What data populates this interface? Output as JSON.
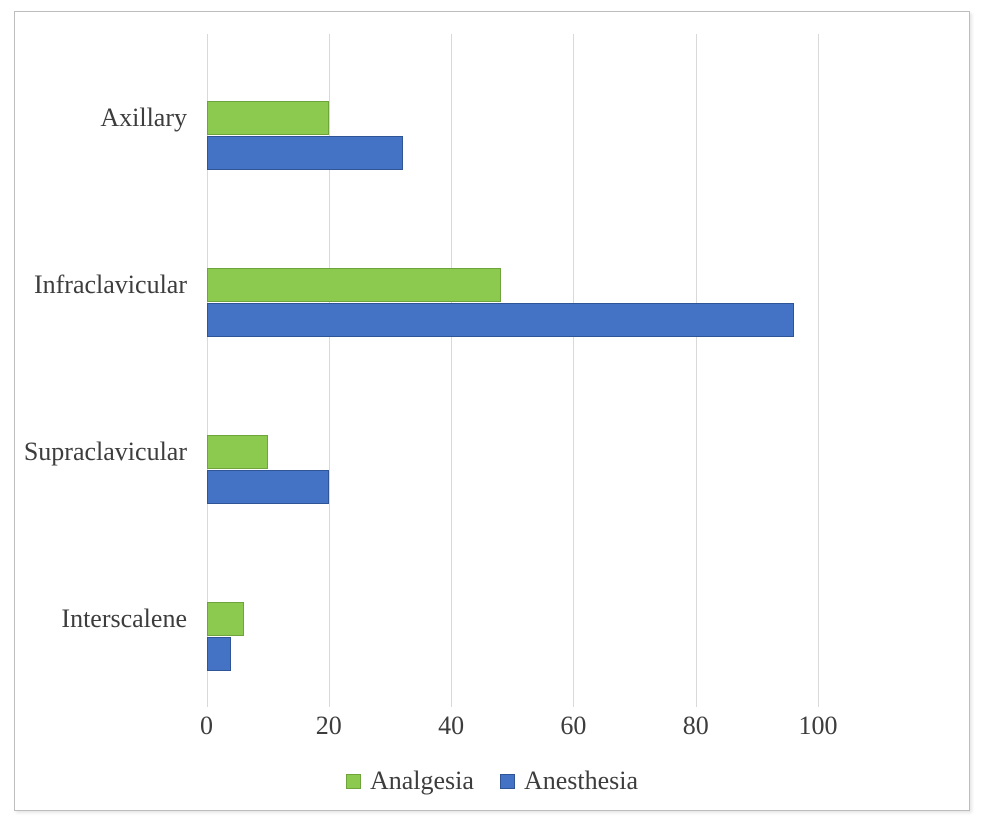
{
  "chart_data": {
    "type": "bar",
    "orientation": "horizontal",
    "title": "",
    "xlabel": "",
    "ylabel": "",
    "categories": [
      "Axillary",
      "Infraclavicular",
      "Supraclavicular",
      "Interscalene"
    ],
    "series": [
      {
        "name": "Analgesia",
        "color": "#8cc94f",
        "border_color": "#6fa33c",
        "values": [
          20,
          48,
          10,
          6
        ]
      },
      {
        "name": "Anesthesia",
        "color": "#4472c4",
        "border_color": "#2f5597",
        "values": [
          32,
          96,
          20,
          4
        ]
      }
    ],
    "x_ticks": [
      0,
      20,
      40,
      60,
      80,
      100
    ],
    "xlim": [
      0,
      100
    ],
    "grid": true,
    "legend_position": "bottom"
  },
  "colors": {
    "grid": "#d9d9d9",
    "text": "#3d3d3d",
    "frame_border": "#bdbdbd",
    "background": "#ffffff"
  }
}
